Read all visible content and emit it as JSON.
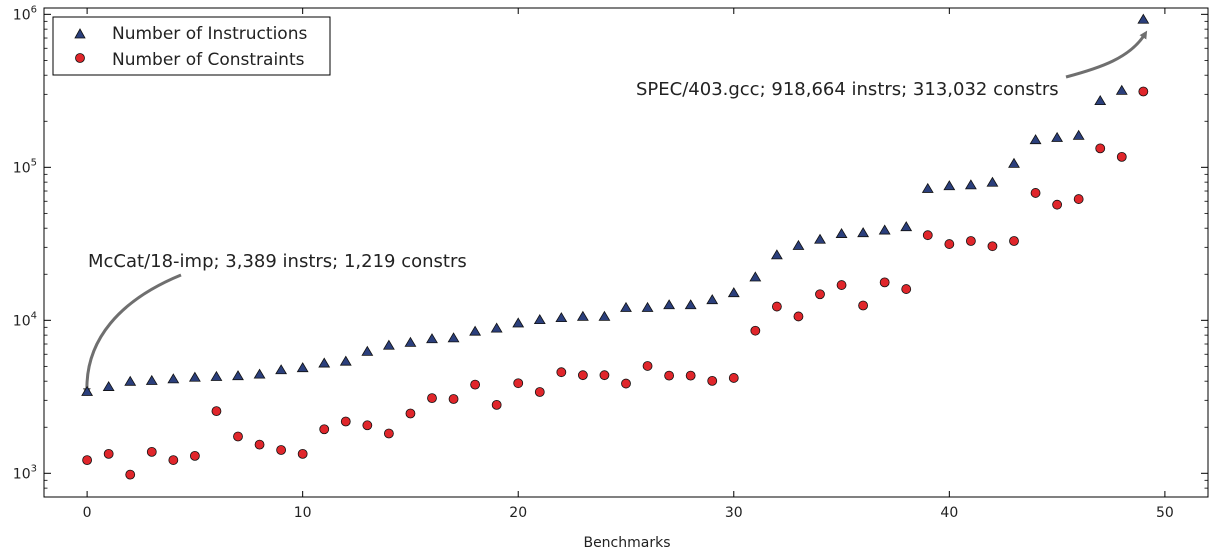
{
  "chart_data": {
    "type": "scatter",
    "title": "",
    "xlabel": "Benchmarks",
    "ylabel": "",
    "xlim": [
      -2,
      52
    ],
    "ylim": [
      700,
      1100000
    ],
    "yscale": "log",
    "xticks": [
      0,
      10,
      20,
      30,
      40,
      50
    ],
    "yticks": [
      {
        "value": 1000,
        "base": "10",
        "exp": "3"
      },
      {
        "value": 10000,
        "base": "10",
        "exp": "4"
      },
      {
        "value": 100000,
        "base": "10",
        "exp": "5"
      },
      {
        "value": 1000000,
        "base": "10",
        "exp": "6"
      }
    ],
    "grid": false,
    "legend_position": "top-left",
    "series": [
      {
        "name": "Number of Instructions",
        "marker": "triangle",
        "color": "#2b3f7c",
        "x": [
          0,
          1,
          2,
          3,
          4,
          5,
          6,
          7,
          8,
          9,
          10,
          11,
          12,
          13,
          14,
          15,
          16,
          17,
          18,
          19,
          20,
          21,
          22,
          23,
          24,
          25,
          26,
          27,
          28,
          29,
          30,
          31,
          32,
          33,
          34,
          35,
          36,
          37,
          38,
          39,
          40,
          41,
          42,
          43,
          44,
          45,
          46,
          47,
          48,
          49
        ],
        "values": [
          3389,
          3650,
          3950,
          4000,
          4100,
          4200,
          4250,
          4300,
          4400,
          4700,
          4850,
          5200,
          5350,
          6200,
          6800,
          7100,
          7500,
          7600,
          8400,
          8800,
          9500,
          10000,
          10300,
          10500,
          10500,
          12000,
          12000,
          12500,
          12500,
          13500,
          15000,
          19000,
          26500,
          30500,
          33500,
          36500,
          37000,
          38500,
          40500,
          72000,
          75000,
          76000,
          79000,
          105000,
          150000,
          155000,
          160000,
          270000,
          315000,
          918664
        ]
      },
      {
        "name": "Number of Constraints",
        "marker": "circle",
        "color": "#e0262b",
        "x": [
          0,
          1,
          2,
          3,
          4,
          5,
          6,
          7,
          8,
          9,
          10,
          11,
          12,
          13,
          14,
          15,
          16,
          17,
          18,
          19,
          20,
          21,
          22,
          23,
          24,
          25,
          26,
          27,
          28,
          29,
          30,
          31,
          32,
          33,
          34,
          35,
          36,
          37,
          38,
          39,
          40,
          41,
          42,
          43,
          44,
          45,
          46,
          47,
          48,
          49
        ],
        "values": [
          1219,
          1340,
          980,
          1380,
          1220,
          1300,
          2550,
          1740,
          1540,
          1420,
          1340,
          1940,
          2180,
          2060,
          1820,
          2460,
          3100,
          3060,
          3800,
          2800,
          3880,
          3400,
          4580,
          4380,
          4380,
          3860,
          5030,
          4350,
          4350,
          4020,
          4200,
          8550,
          12300,
          10600,
          14800,
          17000,
          12500,
          17700,
          16000,
          36000,
          31500,
          33000,
          30500,
          33000,
          68000,
          57000,
          62000,
          133000,
          117000,
          313032
        ]
      }
    ],
    "annotations": [
      {
        "text": "McCat/18-imp; 3,389 instrs; 1,219 constrs",
        "target_x": 0,
        "target_y": 3389
      },
      {
        "text": "SPEC/403.gcc; 918,664 instrs; 313,032 constrs",
        "target_x": 49,
        "target_y": 918664
      }
    ]
  }
}
